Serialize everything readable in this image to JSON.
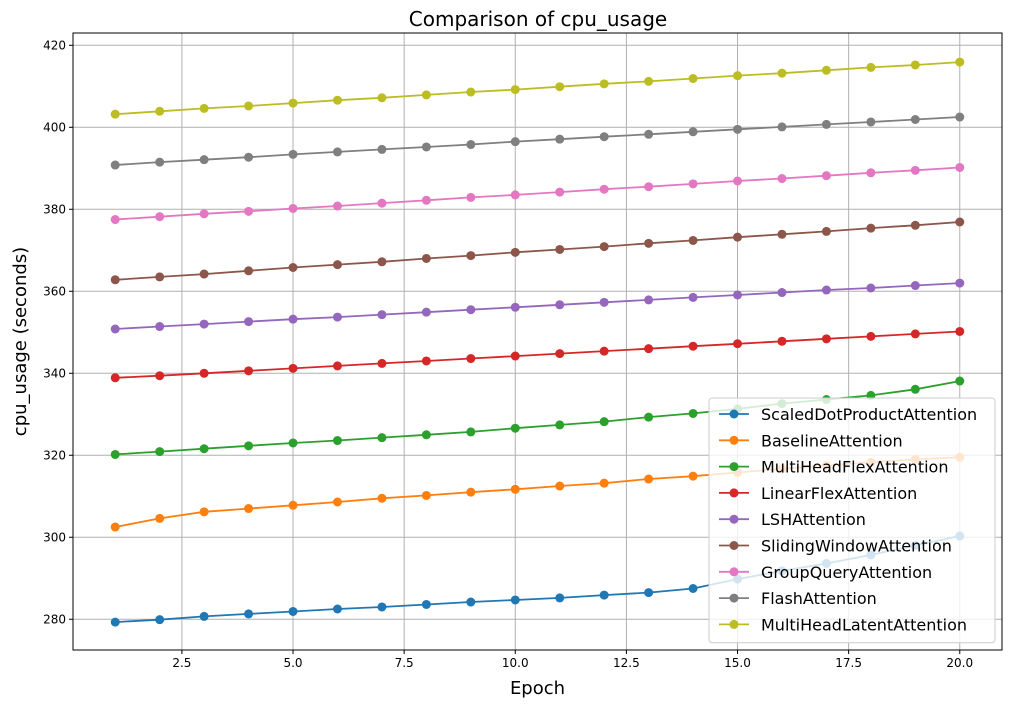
{
  "chart_data": {
    "type": "line",
    "title": "Comparison of cpu_usage",
    "xlabel": "Epoch",
    "ylabel": "cpu_usage (seconds)",
    "xlim": [
      0.05,
      20.95
    ],
    "ylim": [
      272.5,
      423.0
    ],
    "xticks": [
      2.5,
      5.0,
      7.5,
      10.0,
      12.5,
      15.0,
      17.5,
      20.0
    ],
    "xtick_labels": [
      "2.5",
      "5.0",
      "7.5",
      "10.0",
      "12.5",
      "15.0",
      "17.5",
      "20.0"
    ],
    "yticks": [
      280,
      300,
      320,
      340,
      360,
      380,
      400,
      420
    ],
    "ytick_labels": [
      "280",
      "300",
      "320",
      "340",
      "360",
      "380",
      "400",
      "420"
    ],
    "grid": true,
    "legend_position": "lower-right",
    "x": [
      1,
      2,
      3,
      4,
      5,
      6,
      7,
      8,
      9,
      10,
      11,
      12,
      13,
      14,
      15,
      16,
      17,
      18,
      19,
      20
    ],
    "series": [
      {
        "name": "ScaledDotProductAttention",
        "color": "#1f77b4",
        "values": [
          279.3,
          279.9,
          280.7,
          281.3,
          281.9,
          282.5,
          283.0,
          283.6,
          284.2,
          284.7,
          285.2,
          285.9,
          286.5,
          287.5,
          289.8,
          291.8,
          293.6,
          295.7,
          298.0,
          300.3
        ]
      },
      {
        "name": "BaselineAttention",
        "color": "#ff7f0e",
        "values": [
          302.5,
          304.6,
          306.2,
          307.0,
          307.8,
          308.6,
          309.5,
          310.2,
          311.0,
          311.7,
          312.5,
          313.2,
          314.2,
          314.9,
          315.8,
          316.7,
          317.5,
          318.3,
          319.0,
          319.5
        ]
      },
      {
        "name": "MultiHeadFlexAttention",
        "color": "#2ca02c",
        "values": [
          320.2,
          320.9,
          321.6,
          322.3,
          323.0,
          323.6,
          324.3,
          325.0,
          325.7,
          326.6,
          327.4,
          328.2,
          329.3,
          330.2,
          331.3,
          332.6,
          333.6,
          334.6,
          336.1,
          338.1
        ]
      },
      {
        "name": "LinearFlexAttention",
        "color": "#d62728",
        "values": [
          338.9,
          339.4,
          340.0,
          340.6,
          341.2,
          341.8,
          342.4,
          343.0,
          343.6,
          344.2,
          344.8,
          345.4,
          346.0,
          346.6,
          347.2,
          347.8,
          348.4,
          349.0,
          349.6,
          350.2
        ]
      },
      {
        "name": "LSHAttention",
        "color": "#9467bd",
        "values": [
          350.8,
          351.4,
          352.0,
          352.6,
          353.2,
          353.7,
          354.3,
          354.9,
          355.5,
          356.1,
          356.7,
          357.3,
          357.9,
          358.5,
          359.1,
          359.7,
          360.3,
          360.8,
          361.4,
          362.0
        ]
      },
      {
        "name": "SlidingWindowAttention",
        "color": "#8c564b",
        "values": [
          362.8,
          363.5,
          364.2,
          365.0,
          365.8,
          366.5,
          367.2,
          368.0,
          368.7,
          369.5,
          370.2,
          370.9,
          371.7,
          372.4,
          373.2,
          373.9,
          374.6,
          375.4,
          376.1,
          376.9
        ]
      },
      {
        "name": "GroupQueryAttention",
        "color": "#e377c2",
        "values": [
          377.5,
          378.2,
          378.9,
          379.5,
          380.2,
          380.8,
          381.5,
          382.2,
          382.9,
          383.5,
          384.2,
          384.9,
          385.5,
          386.2,
          386.9,
          387.5,
          388.2,
          388.9,
          389.5,
          390.2
        ]
      },
      {
        "name": "FlashAttention",
        "color": "#7f7f7f",
        "values": [
          390.8,
          391.5,
          392.1,
          392.7,
          393.4,
          394.0,
          394.6,
          395.2,
          395.8,
          396.5,
          397.1,
          397.7,
          398.3,
          398.9,
          399.5,
          400.1,
          400.7,
          401.3,
          401.9,
          402.5
        ]
      },
      {
        "name": "MultiHeadLatentAttention",
        "color": "#bcbd22",
        "values": [
          403.2,
          403.9,
          404.6,
          405.2,
          405.9,
          406.6,
          407.2,
          407.9,
          408.6,
          409.2,
          409.9,
          410.6,
          411.2,
          411.9,
          412.6,
          413.2,
          413.9,
          414.6,
          415.2,
          415.9
        ]
      }
    ]
  }
}
